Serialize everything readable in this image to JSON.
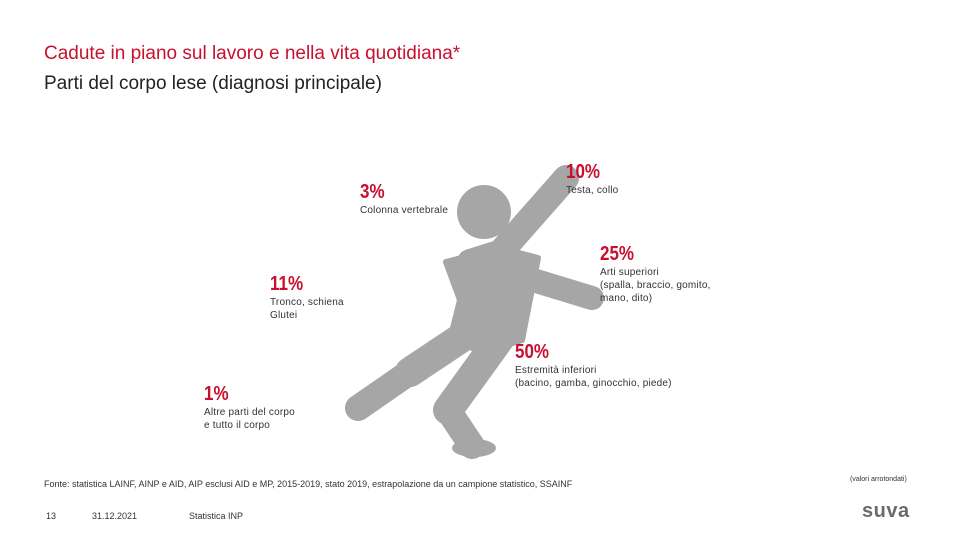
{
  "header": {
    "title": "Cadute in piano sul lavoro e nella vita quotidiana*",
    "subtitle": "Parti del corpo lese (diagnosi principale)"
  },
  "stats": [
    {
      "pct": "10%",
      "label": [
        "Testa, collo"
      ]
    },
    {
      "pct": "3%",
      "label": [
        "Colonna vertebrale"
      ]
    },
    {
      "pct": "25%",
      "label": [
        "Arti superiori",
        "(spalla, braccio, gomito,",
        "mano, dito)"
      ]
    },
    {
      "pct": "11%",
      "label": [
        "Tronco, schiena",
        "Glutei"
      ]
    },
    {
      "pct": "50%",
      "label": [
        "Estremità inferiori",
        "(bacino, gamba, ginocchio, piede)"
      ]
    },
    {
      "pct": "1%",
      "label": [
        "Altre parti del corpo",
        "e tutto il corpo"
      ]
    }
  ],
  "source_text": "Fonte: statistica LAINF, AINP e AID, AIP esclusi AID e MP, 2015-2019, stato 2019, estrapolazione da un campione statistico, SSAINF",
  "note_text": "(valori arrotondati)",
  "footer": {
    "page_number": "13",
    "date": "31.12.2021",
    "org": "Statistica INP"
  },
  "logo_text": "suva",
  "colors": {
    "accent": "#c8102e",
    "figure": "#a6a6a6"
  }
}
